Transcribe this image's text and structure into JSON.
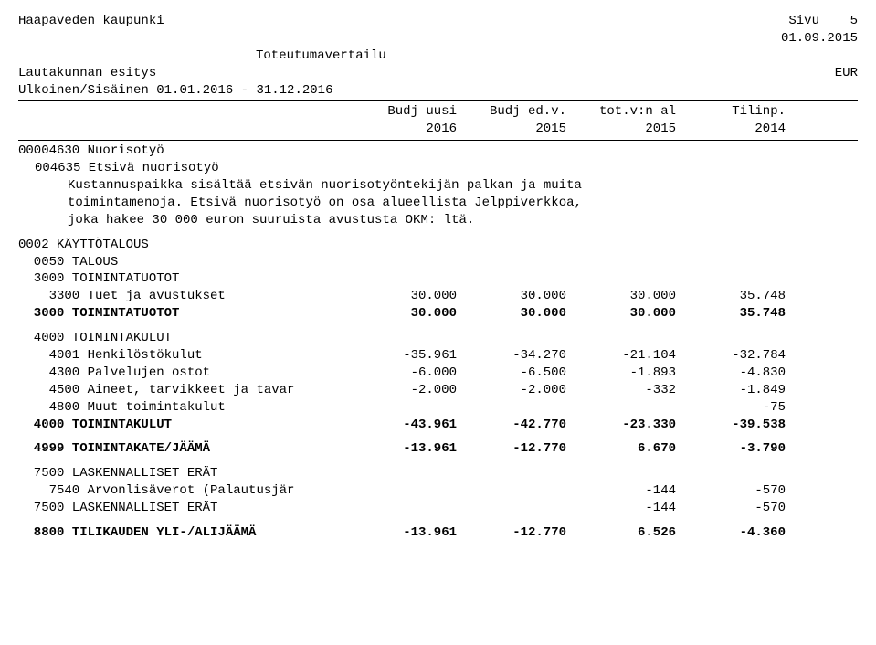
{
  "header": {
    "org": "Haapaveden kaupunki",
    "page_label": "Sivu",
    "page_number": "5",
    "date": "01.09.2015",
    "title_center": "Toteutumavertailu",
    "subtitle_left": "Lautakunnan esitys",
    "subtitle_right": "EUR",
    "filter_label": "Ulkoinen/Sisäinen",
    "filter_value": "01.01.2016 - 31.12.2016"
  },
  "columns": {
    "top": [
      "Budj uusi",
      "Budj ed.v.",
      "tot.v:n al",
      "Tilinp."
    ],
    "bottom": [
      "2016",
      "2015",
      "2015",
      "2014"
    ]
  },
  "section": {
    "code_line": "00004630 Nuorisotyö",
    "sub_code_line": "004635 Etsivä nuorisotyö",
    "para1": "Kustannuspaikka sisältää etsivän nuorisotyöntekijän palkan ja muita",
    "para2": "toimintamenoja. Etsivä nuorisotyö on osa alueellista Jelppiverkkoa,",
    "para3": "joka hakee 30 000 euron suuruista avustusta OKM: ltä."
  },
  "rows": [
    {
      "label": "0002 KÄYTTÖTALOUS",
      "indent": 0,
      "bold": false,
      "vals": [
        "",
        "",
        "",
        ""
      ]
    },
    {
      "label": "0050 TALOUS",
      "indent": 1,
      "bold": false,
      "vals": [
        "",
        "",
        "",
        ""
      ]
    },
    {
      "label": "3000 TOIMINTATUOTOT",
      "indent": 1,
      "bold": false,
      "vals": [
        "",
        "",
        "",
        ""
      ]
    },
    {
      "label": "3300 Tuet ja avustukset",
      "indent": 2,
      "bold": false,
      "vals": [
        "30.000",
        "30.000",
        "30.000",
        "35.748"
      ]
    },
    {
      "label": "3000 TOIMINTATUOTOT",
      "indent": 1,
      "bold": true,
      "vals": [
        "30.000",
        "30.000",
        "30.000",
        "35.748"
      ]
    },
    {
      "spacer": true
    },
    {
      "label": "4000 TOIMINTAKULUT",
      "indent": 1,
      "bold": false,
      "vals": [
        "",
        "",
        "",
        ""
      ]
    },
    {
      "label": "4001 Henkilöstökulut",
      "indent": 2,
      "bold": false,
      "vals": [
        "-35.961",
        "-34.270",
        "-21.104",
        "-32.784"
      ]
    },
    {
      "label": "4300 Palvelujen ostot",
      "indent": 2,
      "bold": false,
      "vals": [
        "-6.000",
        "-6.500",
        "-1.893",
        "-4.830"
      ]
    },
    {
      "label": "4500 Aineet, tarvikkeet ja tavar",
      "indent": 2,
      "bold": false,
      "vals": [
        "-2.000",
        "-2.000",
        "-332",
        "-1.849"
      ]
    },
    {
      "label": "4800 Muut toimintakulut",
      "indent": 2,
      "bold": false,
      "vals": [
        "",
        "",
        "",
        "-75"
      ]
    },
    {
      "label": "4000 TOIMINTAKULUT",
      "indent": 1,
      "bold": true,
      "vals": [
        "-43.961",
        "-42.770",
        "-23.330",
        "-39.538"
      ]
    },
    {
      "spacer": true
    },
    {
      "label": "4999 TOIMINTAKATE/JÄÄMÄ",
      "indent": 1,
      "bold": true,
      "vals": [
        "-13.961",
        "-12.770",
        "6.670",
        "-3.790"
      ]
    },
    {
      "spacer": true
    },
    {
      "label": "7500 LASKENNALLISET ERÄT",
      "indent": 1,
      "bold": false,
      "vals": [
        "",
        "",
        "",
        ""
      ]
    },
    {
      "label": "7540 Arvonlisäverot (Palautusjär",
      "indent": 2,
      "bold": false,
      "vals": [
        "",
        "",
        "-144",
        "-570"
      ]
    },
    {
      "label": "7500 LASKENNALLISET ERÄT",
      "indent": 1,
      "bold": false,
      "vals": [
        "",
        "",
        "-144",
        "-570"
      ]
    },
    {
      "spacer": true
    },
    {
      "label": "8800 TILIKAUDEN YLI-/ALIJÄÄMÄ",
      "indent": 1,
      "bold": true,
      "vals": [
        "-13.961",
        "-12.770",
        "6.526",
        "-4.360"
      ]
    }
  ]
}
